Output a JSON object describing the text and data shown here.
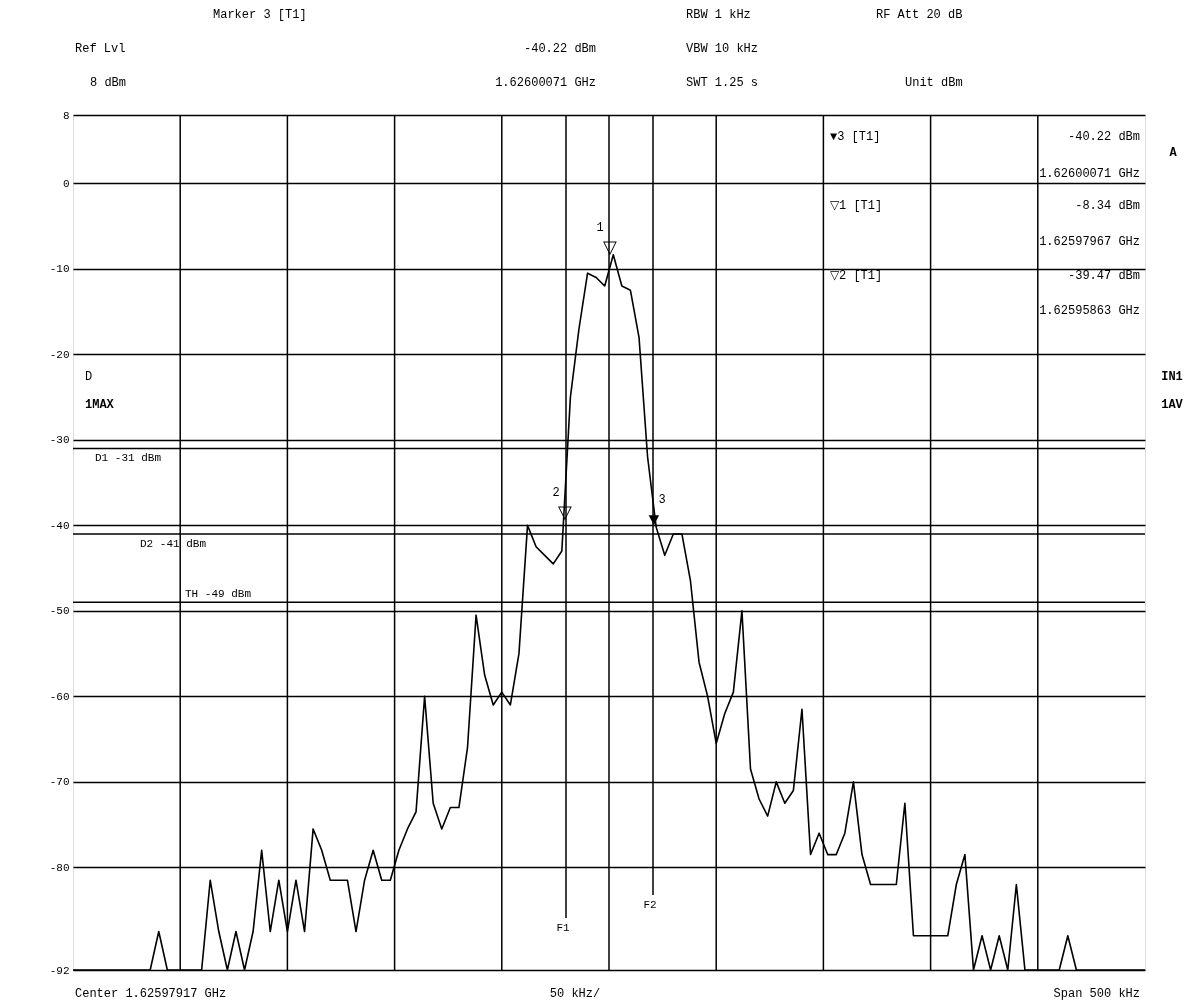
{
  "chart_data": {
    "type": "line",
    "ylim": [
      -92,
      8
    ],
    "yticks": [
      8,
      0,
      -10,
      -20,
      -30,
      -40,
      -50,
      -60,
      -70,
      -80,
      -92
    ],
    "categories": [
      null,
      null,
      null,
      null,
      null,
      null,
      null,
      null,
      null,
      null,
      null,
      null,
      null,
      null,
      null,
      null,
      null,
      null,
      null,
      null,
      null,
      null,
      null,
      null,
      null,
      null,
      null,
      null,
      null,
      null,
      null,
      null,
      null,
      null,
      null,
      null,
      null,
      null,
      null,
      null,
      null,
      null,
      null,
      null,
      null,
      null,
      null,
      null,
      null,
      null,
      null,
      null,
      null,
      null,
      null,
      null,
      null,
      null,
      null,
      null,
      null,
      null,
      null,
      null,
      null,
      null,
      null,
      null,
      null,
      null,
      null,
      null,
      null,
      null,
      null,
      null,
      null,
      null,
      null,
      null,
      null,
      null,
      null,
      null,
      null,
      null,
      null,
      null,
      null,
      null,
      null,
      null,
      null,
      null,
      null,
      null,
      null,
      null,
      null,
      null,
      null,
      null,
      null,
      null,
      null,
      null,
      null,
      null,
      null,
      null,
      null,
      null,
      null,
      null,
      null,
      null,
      null,
      null,
      null,
      null,
      null,
      null,
      null,
      null,
      null,
      null
    ],
    "tick_labels": "y",
    "grid": true,
    "line_style": "solid",
    "series": [
      {
        "color": "#000000",
        "values": [
          -92,
          -92,
          -92,
          -92,
          -92,
          -92,
          -92,
          -92,
          -92,
          -92,
          -87.5,
          -92,
          -92,
          -92,
          -92,
          -92,
          -81.5,
          -87.5,
          -92,
          -87.5,
          -92,
          -87.5,
          -78,
          -87.5,
          -81.5,
          -87.5,
          -81.5,
          -87.5,
          -75.5,
          -78,
          -81.5,
          -81.5,
          -81.5,
          -87.5,
          -81.5,
          -78,
          -81.5,
          -81.5,
          -78,
          -75.5,
          -73.5,
          -60,
          -72.5,
          -75.5,
          -73,
          -73,
          -66,
          -50.5,
          -57.5,
          -61,
          -59.5,
          -61,
          -55,
          -40,
          -42.5,
          -43.5,
          -44.5,
          -43,
          -25,
          -17,
          -10.5,
          -11,
          -12,
          -8.34,
          -12,
          -12.5,
          -18,
          -32,
          -40.2,
          -43.5,
          -41,
          -41,
          -46.5,
          -56,
          -60,
          -65.5,
          -62,
          -59.5,
          -50,
          -68.5,
          -72,
          -74,
          -70,
          -72.5,
          -71,
          -61.5,
          -78.5,
          -76,
          -78.5,
          -78.5,
          -76,
          -70,
          -78.5,
          -82,
          -82,
          -82,
          -82,
          -72.5,
          -88,
          -88,
          -88,
          -88,
          -88,
          -82,
          -78.5,
          -92,
          -88,
          -92,
          -88,
          -92,
          -82,
          -92,
          -92,
          -92,
          -92,
          -92,
          -88,
          -92,
          -92,
          -92,
          -92,
          -92,
          -92,
          -92,
          -92,
          -92
        ]
      }
    ],
    "ref_lines": [
      {
        "axis": "y",
        "value": -31,
        "label": "D1 -31 dBm"
      },
      {
        "axis": "y",
        "value": -41,
        "label": "D2 -41 dBm"
      },
      {
        "axis": "y",
        "value": -49,
        "label": "TH -49 dBm"
      },
      {
        "axis": "x",
        "label": "F1"
      },
      {
        "axis": "x",
        "label": "F2"
      }
    ],
    "annotations": [
      "Marker 3 [T1]",
      "RBW 1 kHz",
      "RF Att 20 dB",
      "Ref Lvl",
      "-40.22 dBm",
      "VBW 10 kHz",
      "8 dBm",
      "1.62600071 GHz",
      "SWT 1.25 s",
      "Unit dBm",
      "▼3 [T1]",
      "-40.22 dBm",
      "1.62600071 GHz",
      "▽1 [T1]",
      "-8.34 dBm",
      "1.62597967 GHz",
      "▽2 [T1]",
      "-39.47 dBm",
      "1.62595863 GHz",
      "A",
      "IN1",
      "1AV",
      "D",
      "1MAX",
      "Center 1.62597917 GHz",
      "50 kHz/",
      "Span 500 kHz",
      "1",
      "▽",
      "2",
      "▽",
      "3",
      "▼"
    ]
  }
}
